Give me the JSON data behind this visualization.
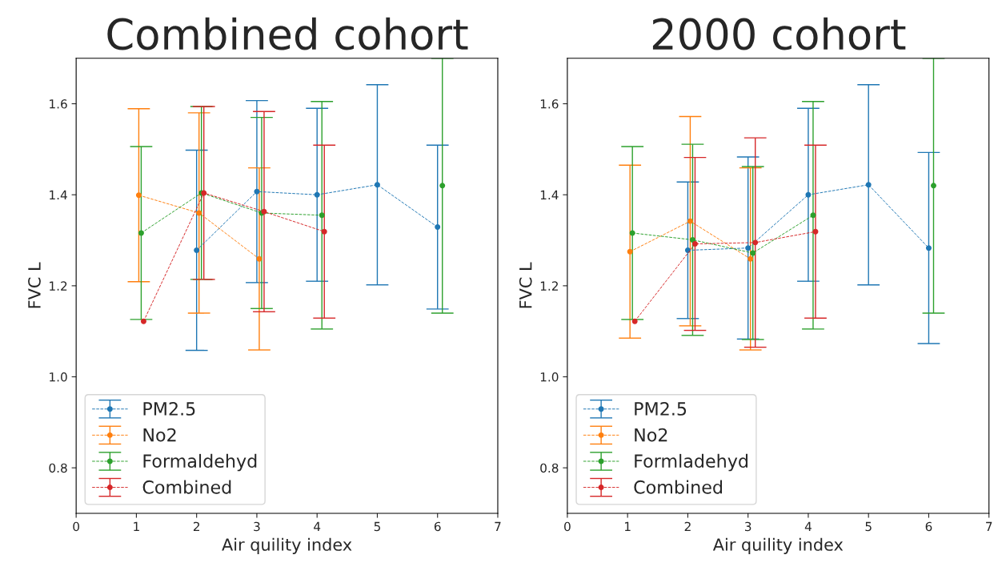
{
  "chart_data": [
    {
      "type": "line",
      "title": "Combined cohort",
      "xlabel": "Air quility index",
      "ylabel": "FVC L",
      "xlim": [
        0,
        7
      ],
      "xticks": [
        0,
        1,
        2,
        3,
        4,
        5,
        6,
        7
      ],
      "ylim": [
        0.7,
        1.7
      ],
      "yticks": [
        0.8,
        {
          "value": 1,
          "label": "1.0"
        },
        1.2,
        1.4,
        1.6
      ],
      "grid": false,
      "legend": "bottom left",
      "marker": "circle",
      "line_style": "dashed",
      "series": [
        {
          "name": "PM2.5",
          "color": "#1f77b4",
          "x": [
            2,
            3,
            4,
            5,
            6
          ],
          "values": [
            1.278,
            1.407,
            1.4,
            1.422,
            1.329
          ],
          "errors": [
            0.22,
            0.2,
            0.19,
            0.22,
            0.18
          ]
        },
        {
          "name": "No2",
          "color": "#ff7f0e",
          "x": [
            1.04,
            2.04,
            3.04
          ],
          "values": [
            1.399,
            1.36,
            1.259
          ],
          "errors": [
            0.19,
            0.22,
            0.2
          ]
        },
        {
          "name": "Formaldehyd",
          "color": "#2ca02c",
          "x": [
            1.08,
            2.08,
            3.08,
            4.08,
            5.08,
            6.08
          ],
          "values": [
            1.316,
            1.404,
            1.36,
            1.355,
            null,
            1.42
          ],
          "errors": [
            0.19,
            0.19,
            0.21,
            0.25,
            null,
            0.28
          ]
        },
        {
          "name": "Combined",
          "color": "#d62728",
          "x": [
            1.12,
            2.12,
            3.12,
            4.12
          ],
          "values": [
            1.122,
            1.404,
            1.363,
            1.319
          ],
          "errors": [
            null,
            0.19,
            0.22,
            0.19
          ]
        }
      ]
    },
    {
      "type": "line",
      "title": "2000 cohort",
      "xlabel": "Air quility index",
      "ylabel": "FVC L",
      "xlim": [
        0,
        7
      ],
      "xticks": [
        0,
        1,
        2,
        3,
        4,
        5,
        6,
        7
      ],
      "ylim": [
        0.7,
        1.7
      ],
      "yticks": [
        0.8,
        {
          "value": 1,
          "label": "1.0"
        },
        1.2,
        1.4,
        1.6
      ],
      "grid": false,
      "legend": "bottom left",
      "marker": "circle",
      "line_style": "dashed",
      "series": [
        {
          "name": "PM2.5",
          "color": "#1f77b4",
          "x": [
            2,
            3,
            4,
            5,
            6
          ],
          "values": [
            1.278,
            1.283,
            1.4,
            1.422,
            1.283
          ],
          "errors": [
            0.15,
            0.2,
            0.19,
            0.22,
            0.21
          ]
        },
        {
          "name": "No2",
          "color": "#ff7f0e",
          "x": [
            1.04,
            2.04,
            3.04
          ],
          "values": [
            1.275,
            1.342,
            1.259
          ],
          "errors": [
            0.19,
            0.23,
            0.2
          ]
        },
        {
          "name": "Formladehyd",
          "color": "#2ca02c",
          "x": [
            1.08,
            2.08,
            3.08,
            4.08,
            5.08,
            6.08
          ],
          "values": [
            1.316,
            1.301,
            1.272,
            1.355,
            null,
            1.42
          ],
          "errors": [
            0.19,
            0.21,
            0.19,
            0.25,
            null,
            0.28
          ]
        },
        {
          "name": "Combined",
          "color": "#d62728",
          "x": [
            1.12,
            2.12,
            3.12,
            4.12
          ],
          "values": [
            1.122,
            1.292,
            1.295,
            1.319
          ],
          "errors": [
            null,
            0.19,
            0.23,
            0.19
          ]
        }
      ]
    }
  ]
}
